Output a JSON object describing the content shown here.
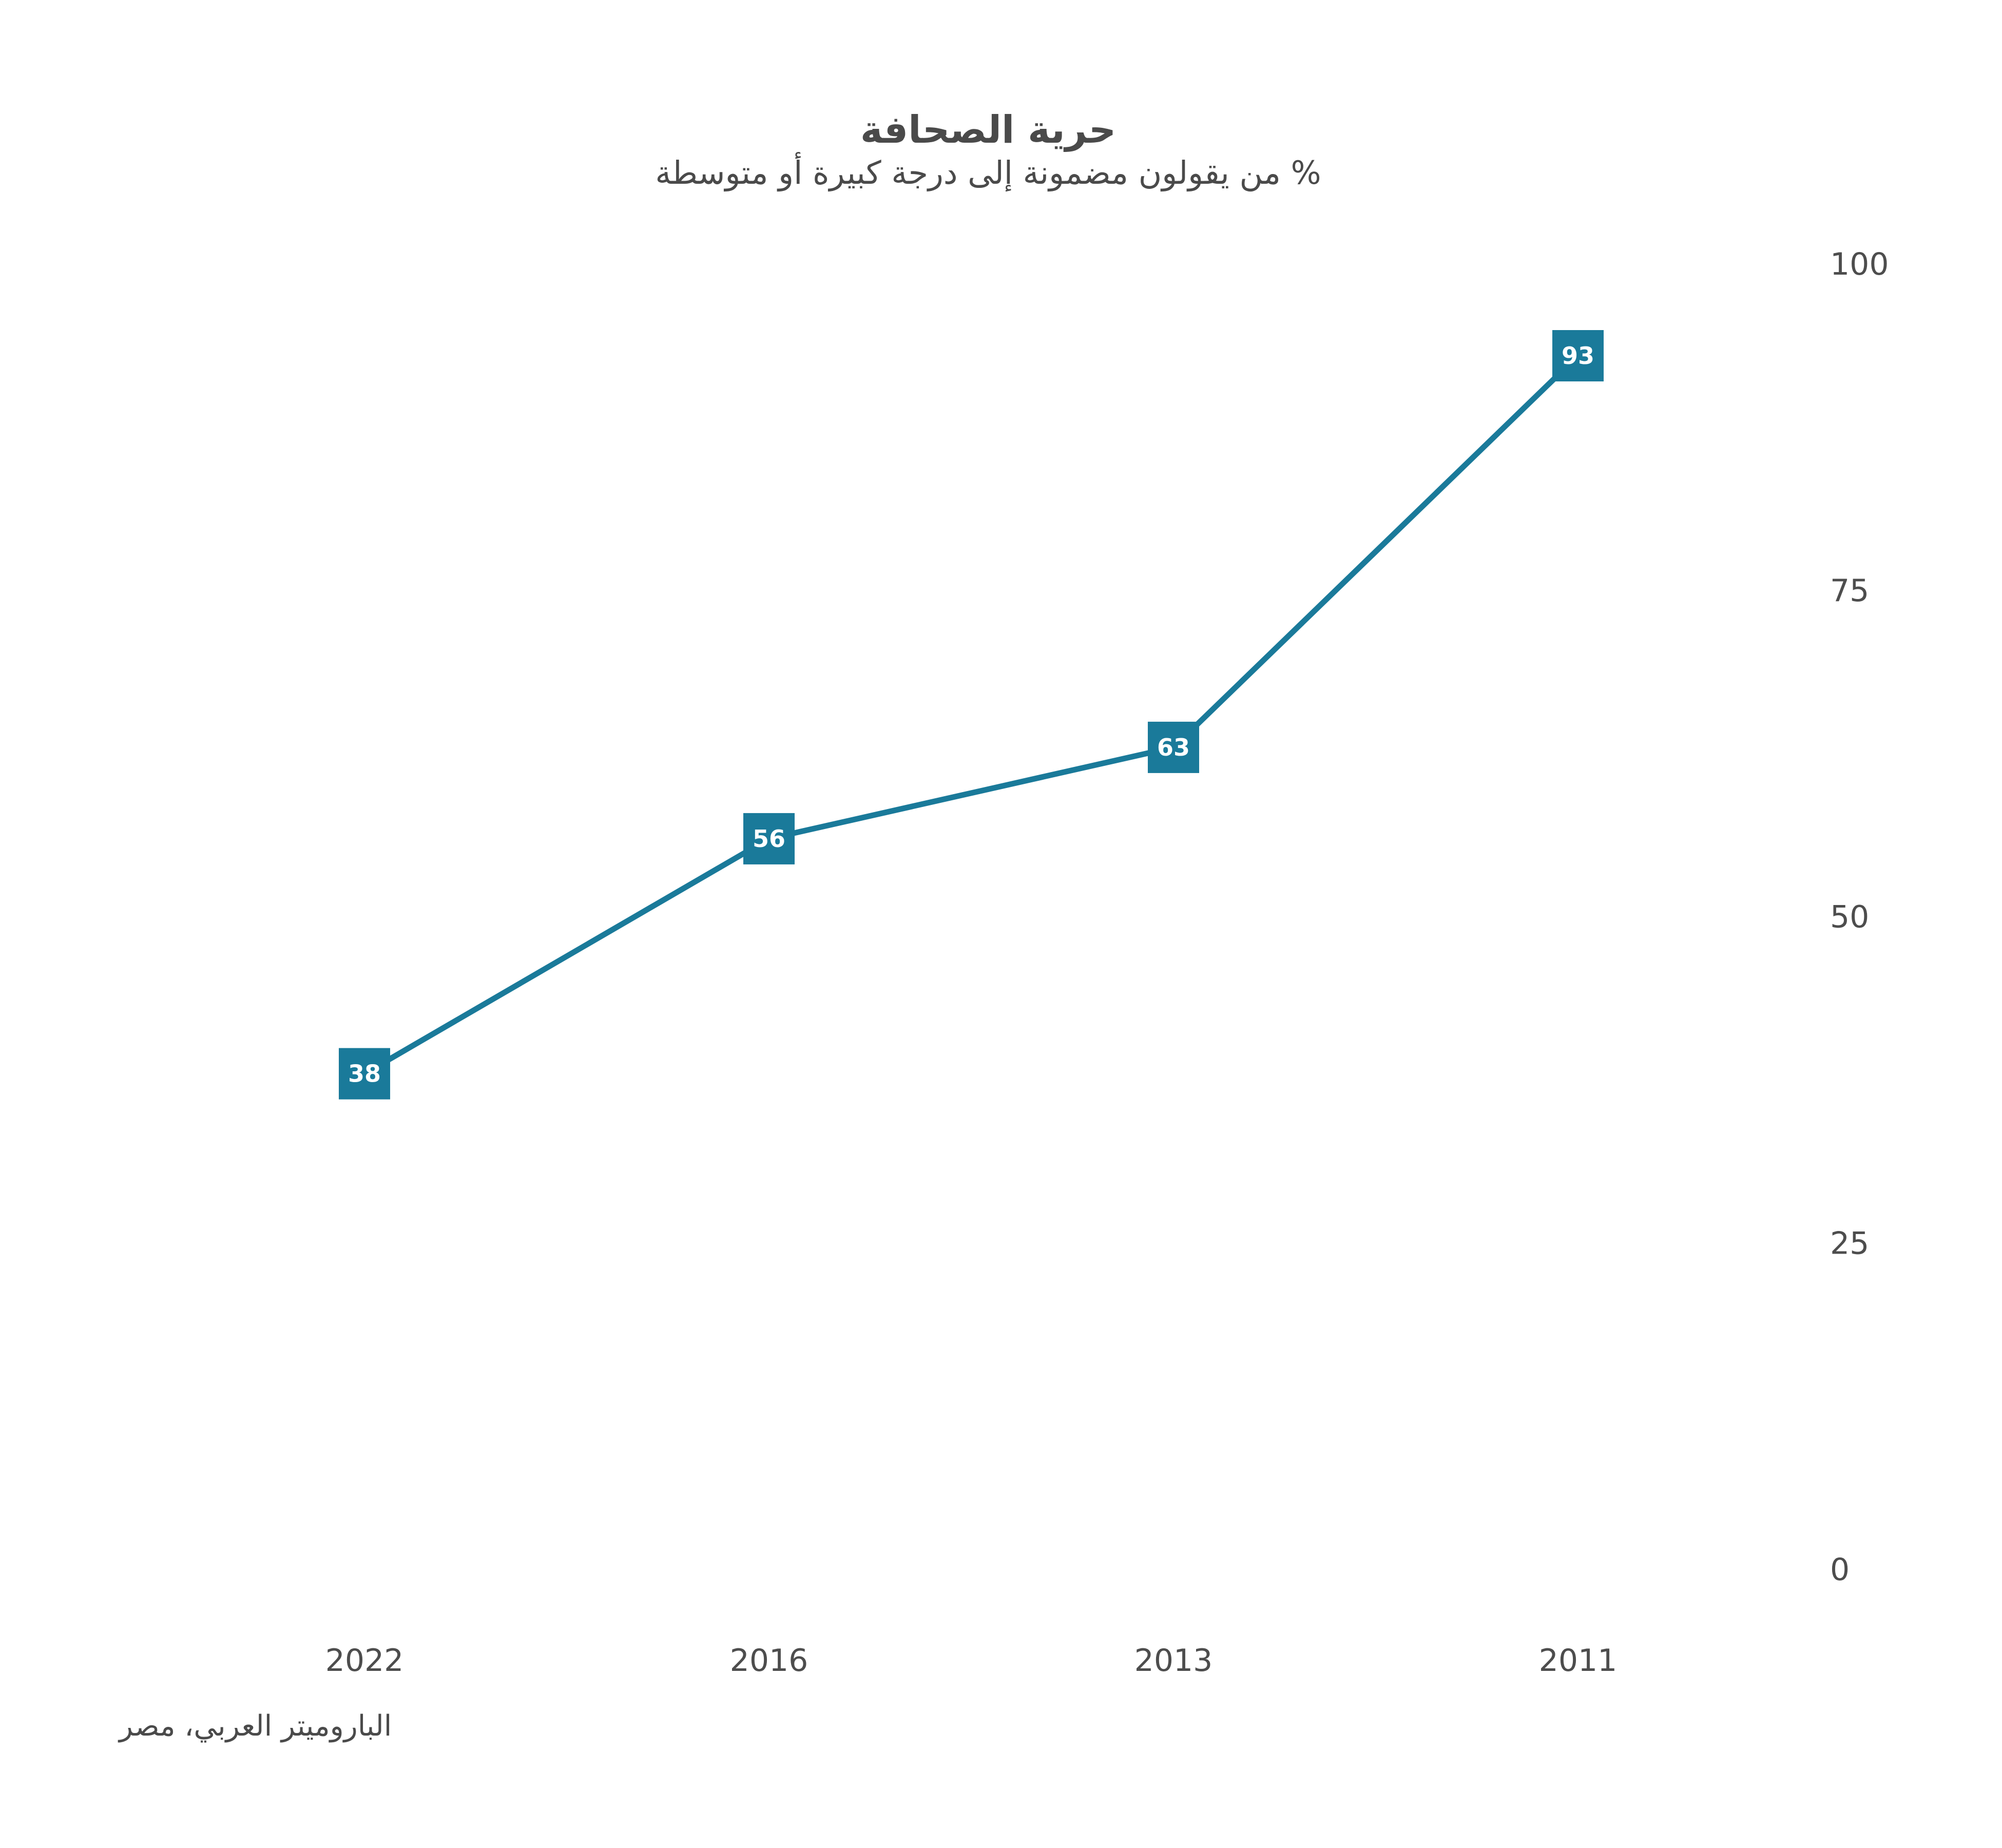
{
  "chart_data": {
    "type": "line",
    "title": "حرية الصحافة",
    "subtitle": "% من يقولون مضمونة إلى درجة كبيرة أو متوسطة",
    "source": "الباروميتر العربي، مصر",
    "categories": [
      "2022",
      "2016",
      "2013",
      "2011"
    ],
    "series": [
      {
        "values": [
          38,
          56,
          63,
          93
        ],
        "color": "#1a7a9a"
      }
    ],
    "ylim": [
      0,
      100
    ],
    "yticks": [
      0,
      25,
      50,
      75,
      100
    ],
    "y_axis_side": "right",
    "grid": false,
    "data_labels": true
  }
}
